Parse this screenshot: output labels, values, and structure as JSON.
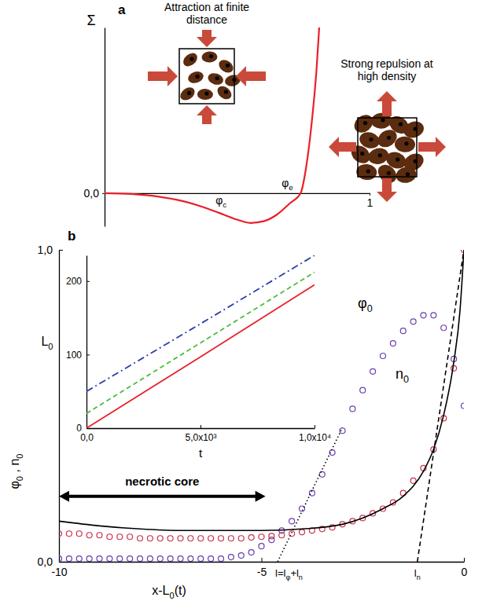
{
  "chart_data": [
    {
      "type": "line",
      "label": "a",
      "y_label": "Σ",
      "xlim": [
        0,
        1
      ],
      "ylim": [
        -0.2,
        1
      ],
      "xticks": [
        1
      ],
      "yticks": [
        {
          "value": 0,
          "label": "0,0"
        }
      ],
      "series": [
        {
          "color": "#e8202a",
          "line_style": "solid",
          "x": [
            0,
            0.1,
            0.2,
            0.3,
            0.4,
            0.45,
            0.5,
            0.55,
            0.6,
            0.65,
            0.7,
            0.74,
            0.76,
            0.78,
            0.8,
            0.81
          ],
          "values": [
            0,
            -0.005,
            -0.02,
            -0.05,
            -0.1,
            -0.13,
            -0.16,
            -0.18,
            -0.17,
            -0.13,
            -0.06,
            0,
            0.15,
            0.4,
            0.75,
            1
          ]
        }
      ],
      "annotations": [
        {
          "text": "φc",
          "x": 0.44
        },
        {
          "text": "φe",
          "x": 0.69
        },
        {
          "text": "Attraction at finite distance"
        },
        {
          "text": "Strong repulsion at high density"
        }
      ]
    },
    {
      "type": "scatter",
      "label": "b",
      "x_label": "x-L0(t)",
      "y_label": "φ0 , n0",
      "xlim": [
        -10,
        0
      ],
      "ylim": [
        0,
        1
      ],
      "xticks": [
        -10,
        -5,
        0
      ],
      "yticks": [
        {
          "value": 0,
          "label": "0,0"
        },
        {
          "value": 1,
          "label": "1,0"
        }
      ],
      "series": [
        {
          "name": "φ0",
          "type": "scatter",
          "marker": "circle",
          "color": "#6a3fb0",
          "x": [
            -10,
            -9.75,
            -9.5,
            -9.25,
            -9,
            -8.75,
            -8.5,
            -8.25,
            -8,
            -7.75,
            -7.5,
            -7.25,
            -7,
            -6.75,
            -6.5,
            -6.25,
            -6,
            -5.75,
            -5.5,
            -5.25,
            -5,
            -4.75,
            -4.5,
            -4.25,
            -4,
            -3.75,
            -3.5,
            -3.25,
            -3,
            -2.75,
            -2.5,
            -2.25,
            -2,
            -1.75,
            -1.5,
            -1.25,
            -1,
            -0.75,
            -0.5,
            -0.25,
            0
          ],
          "values": [
            0.01,
            0.01,
            0.01,
            0.01,
            0.01,
            0.01,
            0.01,
            0.01,
            0.01,
            0.01,
            0.01,
            0.01,
            0.01,
            0.01,
            0.01,
            0.01,
            0.01,
            0.015,
            0.02,
            0.03,
            0.05,
            0.07,
            0.1,
            0.13,
            0.17,
            0.22,
            0.28,
            0.35,
            0.42,
            0.49,
            0.55,
            0.61,
            0.66,
            0.7,
            0.74,
            0.77,
            0.79,
            0.79,
            0.75,
            0.65,
            0.5
          ]
        },
        {
          "name": "n0",
          "type": "scatter",
          "marker": "circle",
          "color": "#c8324a",
          "x": [
            -10,
            -9.75,
            -9.5,
            -9.25,
            -9,
            -8.75,
            -8.5,
            -8.25,
            -8,
            -7.75,
            -7.5,
            -7.25,
            -7,
            -6.75,
            -6.5,
            -6.25,
            -6,
            -5.75,
            -5.5,
            -5.25,
            -5,
            -4.75,
            -4.5,
            -4.25,
            -4,
            -3.75,
            -3.5,
            -3.25,
            -3,
            -2.75,
            -2.5,
            -2.25,
            -2,
            -1.75,
            -1.5,
            -1.25,
            -1,
            -0.75,
            -0.5,
            -0.25,
            0
          ],
          "values": [
            0.09,
            0.09,
            0.09,
            0.085,
            0.085,
            0.08,
            0.08,
            0.08,
            0.075,
            0.075,
            0.075,
            0.075,
            0.075,
            0.075,
            0.075,
            0.075,
            0.075,
            0.075,
            0.075,
            0.078,
            0.08,
            0.082,
            0.085,
            0.09,
            0.095,
            0.1,
            0.105,
            0.11,
            0.12,
            0.13,
            0.14,
            0.155,
            0.17,
            0.19,
            0.22,
            0.26,
            0.3,
            0.36,
            0.46,
            0.62,
            1
          ]
        },
        {
          "type": "line",
          "line_style": "solid",
          "color": "#000000",
          "x": [
            -10,
            -9,
            -8,
            -7,
            -6,
            -5,
            -4,
            -3,
            -2,
            -1.5,
            -1,
            -0.75,
            -0.5,
            -0.25,
            -0.1,
            0
          ],
          "values": [
            0.13,
            0.115,
            0.105,
            0.1,
            0.1,
            0.1,
            0.105,
            0.12,
            0.17,
            0.21,
            0.29,
            0.36,
            0.47,
            0.64,
            0.8,
            1
          ]
        },
        {
          "type": "line",
          "line_style": "dotted",
          "color": "#000000",
          "x": [
            -4.6,
            -3
          ],
          "values": [
            0,
            0.43
          ]
        },
        {
          "type": "line",
          "line_style": "dashed",
          "color": "#000000",
          "x": [
            -1.15,
            0
          ],
          "values": [
            0,
            1
          ]
        }
      ],
      "annotations": [
        {
          "text": "necrotic core",
          "x": [
            -10,
            -4.9
          ],
          "y": 0.21
        },
        {
          "text": "l=lφ+ln",
          "x": -4.6
        },
        {
          "text": "ln",
          "x": -1.15
        }
      ]
    },
    {
      "type": "line",
      "x_label": "t",
      "y_label": "L0",
      "xlim": [
        0,
        10000
      ],
      "ylim": [
        0,
        235
      ],
      "xticks": [
        {
          "value": 0,
          "label": "0,0"
        },
        {
          "value": 5000,
          "label": "5,0x10³"
        },
        {
          "value": 10000,
          "label": "1,0x10⁴"
        }
      ],
      "yticks": [
        0,
        100,
        200
      ],
      "series": [
        {
          "color": "#e8202a",
          "line_style": "solid",
          "x": [
            0,
            5000,
            10000
          ],
          "values": [
            0,
            97,
            195
          ]
        },
        {
          "color": "#4cbb3c",
          "line_style": "dashed",
          "x": [
            0,
            5000,
            10000
          ],
          "values": [
            20,
            116,
            212
          ]
        },
        {
          "color": "#2b3ea8",
          "line_style": "dashdot",
          "x": [
            0,
            5000,
            10000
          ],
          "values": [
            50,
            142,
            235
          ]
        }
      ]
    }
  ]
}
